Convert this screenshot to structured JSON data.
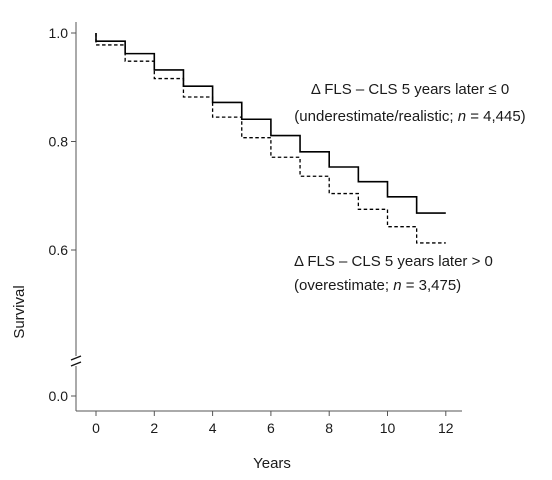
{
  "chart_data": {
    "type": "line",
    "title": "",
    "xlabel": "Years",
    "ylabel": "Survival",
    "xlim": [
      -0.7,
      12.6
    ],
    "xticks": [
      0,
      2,
      4,
      6,
      8,
      10,
      12
    ],
    "yticks": [
      0.0,
      0.6,
      0.8,
      1.0
    ],
    "ytick_labels": [
      "0.0",
      "0.6",
      "0.8",
      "1.0"
    ],
    "y_axis_break": "between 0.0 and 0.6",
    "grid": false,
    "legend": "none (annotations on plot)",
    "series": [
      {
        "style": "solid",
        "step": true,
        "x": [
          0,
          1,
          2,
          3,
          4,
          5,
          6,
          7,
          8,
          9,
          10,
          11,
          12
        ],
        "y": [
          0.985,
          0.962,
          0.932,
          0.902,
          0.872,
          0.841,
          0.811,
          0.781,
          0.753,
          0.726,
          0.698,
          0.668,
          0.668
        ]
      },
      {
        "style": "dashed",
        "step": true,
        "x": [
          0,
          1,
          2,
          3,
          4,
          5,
          6,
          7,
          8,
          9,
          10,
          11,
          12
        ],
        "y": [
          0.978,
          0.948,
          0.916,
          0.882,
          0.845,
          0.807,
          0.771,
          0.736,
          0.704,
          0.675,
          0.643,
          0.613,
          0.613
        ]
      }
    ],
    "annotations": [
      {
        "line1": "Δ FLS – CLS 5 years later ≤ 0",
        "line2_pre": "(underestimate/realistic; ",
        "line2_n": "n",
        "line2_post": " = 4,445)"
      },
      {
        "line1": "Δ FLS – CLS 5 years later > 0",
        "line2_pre": "(overestimate; ",
        "line2_n": "n",
        "line2_post": " = 3,475)"
      }
    ],
    "colors": {
      "lines": "#000000",
      "axes": "#555555"
    }
  }
}
